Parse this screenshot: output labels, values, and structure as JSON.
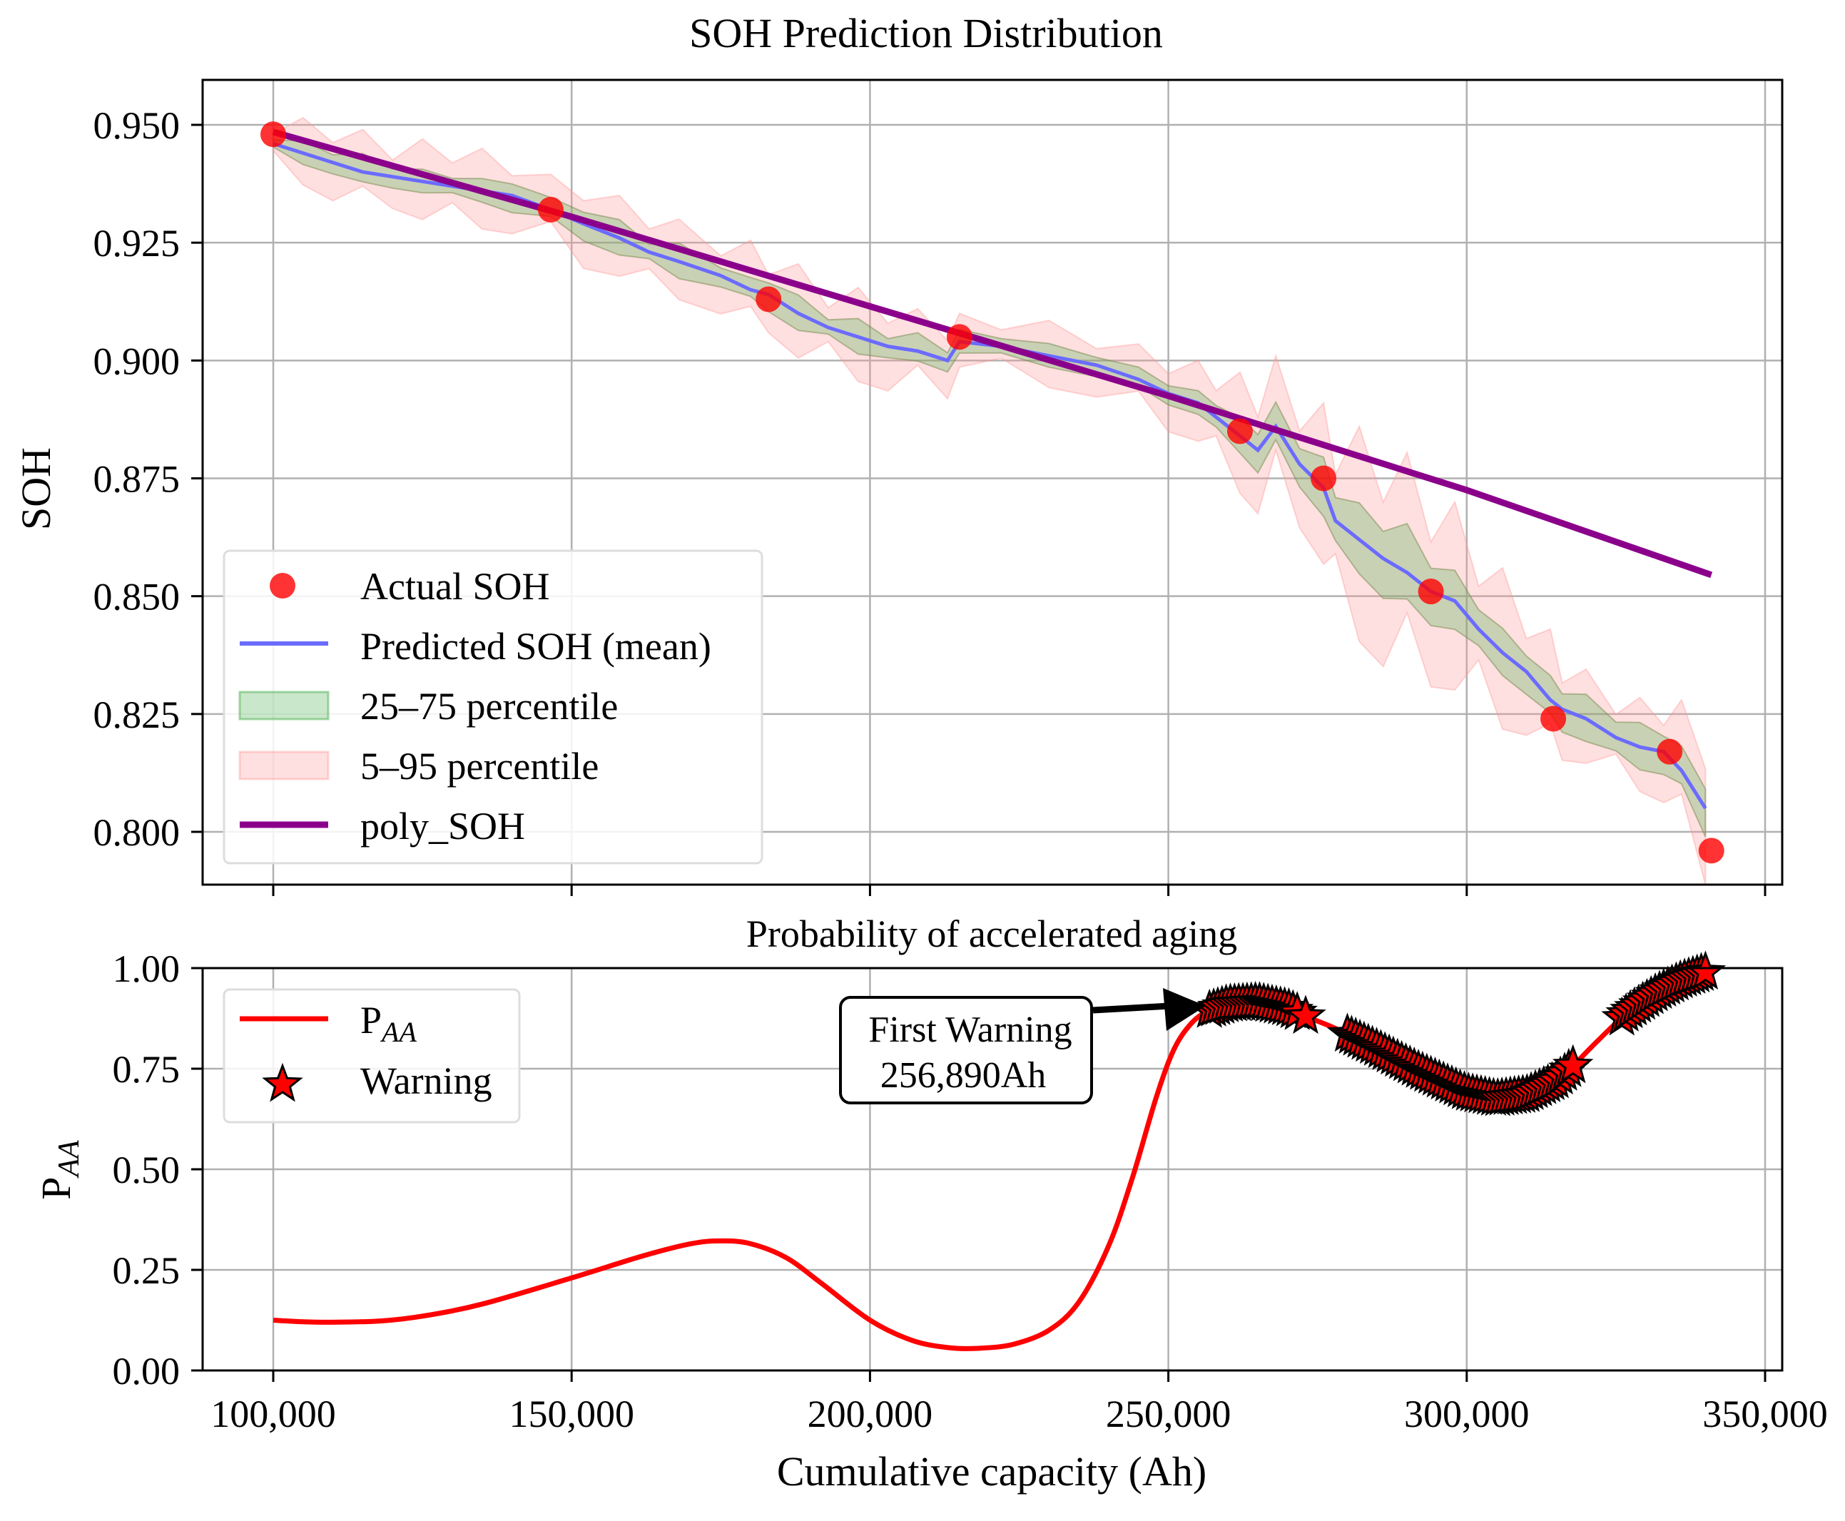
{
  "chart_data": [
    {
      "type": "line",
      "title": "SOH Prediction Distribution",
      "xlabel": "",
      "ylabel": "SOH",
      "xlim": [
        90000,
        352000
      ],
      "ylim": [
        0.7905,
        0.96
      ],
      "yticks": [
        0.8,
        0.825,
        0.85,
        0.875,
        0.9,
        0.925,
        0.95
      ],
      "ytick_labels": [
        "0.800",
        "0.825",
        "0.850",
        "0.875",
        "0.900",
        "0.925",
        "0.950"
      ],
      "xticks": [
        100000,
        150000,
        200000,
        250000,
        300000,
        350000
      ],
      "grid": true,
      "legend_position": "lower-left",
      "legend": [
        "Actual SOH",
        "Predicted SOH (mean)",
        "25–75 percentile",
        "5–95 percentile",
        "poly_SOH"
      ],
      "colors": {
        "actual": "#ff0000",
        "mean": "#6b6bff",
        "iqr": "#4caf50",
        "outer": "#ff9999",
        "poly": "#8b008b"
      },
      "actual_soh": {
        "x": [
          100000,
          146500,
          183000,
          215000,
          262000,
          276000,
          294000,
          314500,
          334000,
          341000
        ],
        "y": [
          0.948,
          0.932,
          0.913,
          0.905,
          0.885,
          0.875,
          0.851,
          0.824,
          0.817,
          0.796
        ]
      },
      "predicted_mean": {
        "x": [
          100000,
          105000,
          110000,
          115000,
          120000,
          125000,
          130000,
          135000,
          140000,
          146500,
          152000,
          158000,
          163000,
          168000,
          175000,
          180000,
          183000,
          188000,
          193000,
          198000,
          203000,
          208000,
          213000,
          215000,
          222000,
          230000,
          238000,
          245000,
          250000,
          255000,
          258000,
          262000,
          265000,
          268000,
          272000,
          276000,
          278000,
          282000,
          286000,
          290000,
          294000,
          298000,
          302000,
          306000,
          310000,
          314000,
          316000,
          320000,
          325000,
          329000,
          333000,
          336000,
          340000
        ],
        "y": [
          0.946,
          0.944,
          0.942,
          0.94,
          0.939,
          0.938,
          0.937,
          0.936,
          0.935,
          0.932,
          0.929,
          0.926,
          0.923,
          0.921,
          0.918,
          0.915,
          0.914,
          0.91,
          0.907,
          0.905,
          0.903,
          0.902,
          0.9,
          0.904,
          0.903,
          0.901,
          0.899,
          0.896,
          0.893,
          0.891,
          0.888,
          0.884,
          0.881,
          0.886,
          0.878,
          0.873,
          0.866,
          0.862,
          0.858,
          0.855,
          0.851,
          0.849,
          0.843,
          0.838,
          0.834,
          0.828,
          0.826,
          0.824,
          0.82,
          0.818,
          0.817,
          0.813,
          0.805
        ]
      },
      "band_25_75_halfwidth": [
        0.001,
        0.002,
        0.002,
        0.003,
        0.002,
        0.002,
        0.002,
        0.002,
        0.003,
        0.002,
        0.003,
        0.003,
        0.002,
        0.003,
        0.002,
        0.002,
        0.003,
        0.003,
        0.002,
        0.003,
        0.002,
        0.003,
        0.002,
        0.002,
        0.002,
        0.002,
        0.002,
        0.002,
        0.002,
        0.002,
        0.003,
        0.003,
        0.004,
        0.004,
        0.004,
        0.005,
        0.006,
        0.006,
        0.007,
        0.008,
        0.006,
        0.005,
        0.005,
        0.004,
        0.004,
        0.004,
        0.004,
        0.004,
        0.004,
        0.004,
        0.004,
        0.004,
        0.005
      ],
      "band_5_95_halfwidth": [
        0.003,
        0.005,
        0.006,
        0.006,
        0.005,
        0.006,
        0.007,
        0.006,
        0.006,
        0.005,
        0.007,
        0.006,
        0.007,
        0.006,
        0.006,
        0.007,
        0.006,
        0.007,
        0.006,
        0.007,
        0.007,
        0.006,
        0.006,
        0.004,
        0.005,
        0.005,
        0.005,
        0.005,
        0.006,
        0.006,
        0.008,
        0.009,
        0.01,
        0.01,
        0.01,
        0.012,
        0.014,
        0.016,
        0.017,
        0.017,
        0.015,
        0.014,
        0.013,
        0.012,
        0.01,
        0.01,
        0.008,
        0.007,
        0.007,
        0.007,
        0.008,
        0.01,
        0.012
      ],
      "poly_soh": {
        "x": [
          100000,
          150000,
          200000,
          250000,
          300000,
          341000
        ],
        "y": [
          0.9485,
          0.9305,
          0.9115,
          0.8925,
          0.8725,
          0.8545
        ]
      }
    },
    {
      "type": "line",
      "title": "Probability of accelerated aging",
      "xlabel": "Cumulative capacity (Ah)",
      "ylabel_main": "P",
      "ylabel_sub": "AA",
      "xlim": [
        90000,
        352000
      ],
      "ylim": [
        0.0,
        1.0
      ],
      "yticks": [
        0.0,
        0.25,
        0.5,
        0.75,
        1.0
      ],
      "ytick_labels": [
        "0.00",
        "0.25",
        "0.50",
        "0.75",
        "1.00"
      ],
      "xticks": [
        100000,
        150000,
        200000,
        250000,
        300000,
        350000
      ],
      "xtick_labels": [
        "100,000",
        "150,000",
        "200,000",
        "250,000",
        "300,000",
        "350,000"
      ],
      "grid": true,
      "legend_position": "upper-left",
      "legend": {
        "paa_main": "P",
        "paa_sub": "AA",
        "warning": "Warning"
      },
      "colors": {
        "paa": "#ff0000",
        "warning_fill": "#ff0000",
        "warning_edge": "#000000"
      },
      "p_aa": {
        "x": [
          100000,
          105000,
          110000,
          118000,
          125000,
          135000,
          150000,
          162000,
          170000,
          175000,
          180000,
          186000,
          192000,
          200000,
          207000,
          213000,
          218000,
          224000,
          230000,
          235000,
          240000,
          244000,
          248000,
          251000,
          254000,
          256890,
          260000,
          265000,
          270000,
          273000,
          278000,
          285000,
          292000,
          300000,
          305000,
          310000,
          315000,
          318000,
          322000,
          327000,
          332000,
          336000,
          340000
        ],
        "y": [
          0.125,
          0.121,
          0.12,
          0.123,
          0.135,
          0.165,
          0.23,
          0.285,
          0.315,
          0.322,
          0.315,
          0.28,
          0.215,
          0.125,
          0.075,
          0.057,
          0.055,
          0.065,
          0.1,
          0.17,
          0.31,
          0.48,
          0.68,
          0.8,
          0.865,
          0.895,
          0.91,
          0.915,
          0.9,
          0.88,
          0.85,
          0.8,
          0.745,
          0.69,
          0.675,
          0.685,
          0.72,
          0.76,
          0.82,
          0.89,
          0.94,
          0.97,
          0.99
        ]
      },
      "warning_ranges": [
        [
          256890,
          272000
        ],
        [
          280000,
          318000
        ],
        [
          326000,
          340000
        ]
      ],
      "warning_isolated": [
        273000
      ],
      "warning_step": 700,
      "annotation": {
        "line1": "First Warning",
        "line2": "256,890Ah",
        "x": 256890,
        "y": 0.895
      }
    }
  ]
}
